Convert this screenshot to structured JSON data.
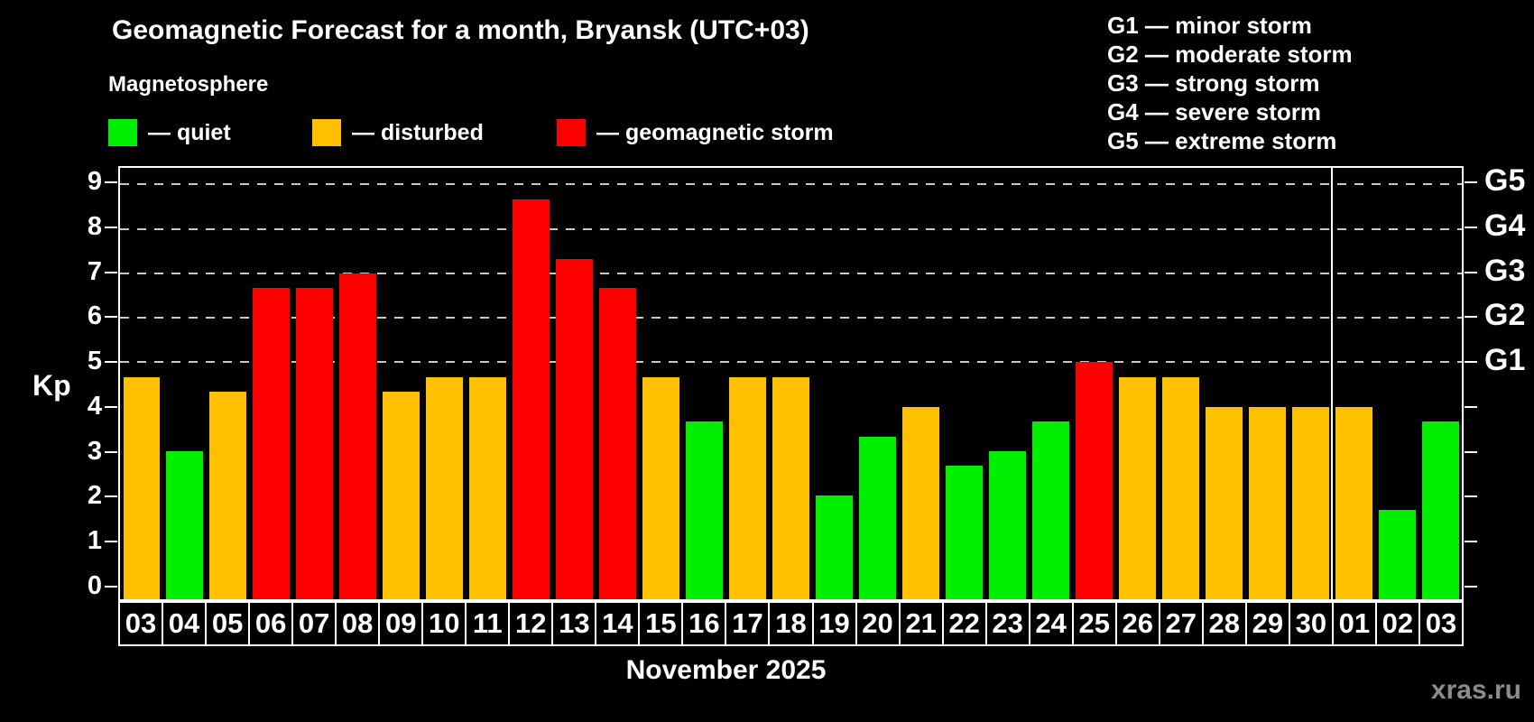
{
  "header": {
    "title": "Geomagnetic Forecast for a month, Bryansk (UTC+03)",
    "subtitle": "Magnetosphere"
  },
  "legend": {
    "items": [
      {
        "status": "quiet",
        "label": "— quiet",
        "color": "#00ee00"
      },
      {
        "status": "disturbed",
        "label": "— disturbed",
        "color": "#ffc000"
      },
      {
        "status": "storm",
        "label": "— geomagnetic storm",
        "color": "#ff0000"
      }
    ]
  },
  "g_scale_legend": {
    "items": [
      "G1 — minor storm",
      "G2 — moderate storm",
      "G3 — strong storm",
      "G4 — severe storm",
      "G5 — extreme storm"
    ]
  },
  "chart_data": {
    "type": "bar",
    "title": "Geomagnetic Forecast for a month, Bryansk (UTC+03)",
    "ylabel": "Kp",
    "xlabel": "November 2025",
    "ylim": [
      0,
      9
    ],
    "y_ticks": [
      0,
      1,
      2,
      3,
      4,
      5,
      6,
      7,
      8,
      9
    ],
    "grid": "dashed horizontal lines at Kp 5-9 only",
    "categories": [
      "03",
      "04",
      "05",
      "06",
      "07",
      "08",
      "09",
      "10",
      "11",
      "12",
      "13",
      "14",
      "15",
      "16",
      "17",
      "18",
      "19",
      "20",
      "21",
      "22",
      "23",
      "24",
      "25",
      "26",
      "27",
      "28",
      "29",
      "30",
      "01",
      "02",
      "03"
    ],
    "values": [
      4.67,
      3.0,
      4.33,
      6.67,
      6.67,
      7.0,
      4.33,
      4.67,
      4.67,
      8.67,
      7.33,
      6.67,
      4.67,
      3.67,
      4.67,
      4.67,
      2.0,
      3.33,
      4.0,
      2.67,
      3.0,
      3.67,
      5.0,
      4.67,
      4.67,
      4.0,
      4.0,
      4.0,
      4.0,
      1.67,
      3.67
    ],
    "statuses": [
      "disturbed",
      "quiet",
      "disturbed",
      "storm",
      "storm",
      "storm",
      "disturbed",
      "disturbed",
      "disturbed",
      "storm",
      "storm",
      "storm",
      "disturbed",
      "quiet",
      "disturbed",
      "disturbed",
      "quiet",
      "quiet",
      "disturbed",
      "quiet",
      "quiet",
      "quiet",
      "storm",
      "disturbed",
      "disturbed",
      "disturbed",
      "disturbed",
      "disturbed",
      "disturbed",
      "quiet",
      "quiet"
    ],
    "right_axis_labels": [
      {
        "label": "G1",
        "kp": 5
      },
      {
        "label": "G2",
        "kp": 6
      },
      {
        "label": "G3",
        "kp": 7
      },
      {
        "label": "G4",
        "kp": 8
      },
      {
        "label": "G5",
        "kp": 9
      }
    ],
    "gridlines_at": [
      5,
      6,
      7,
      8,
      9
    ],
    "month_separator_before_index": 28,
    "legend_position": "top-left"
  },
  "status_colors": {
    "quiet": "#00ee00",
    "disturbed": "#ffc000",
    "storm": "#ff0000"
  },
  "watermark": "xras.ru"
}
